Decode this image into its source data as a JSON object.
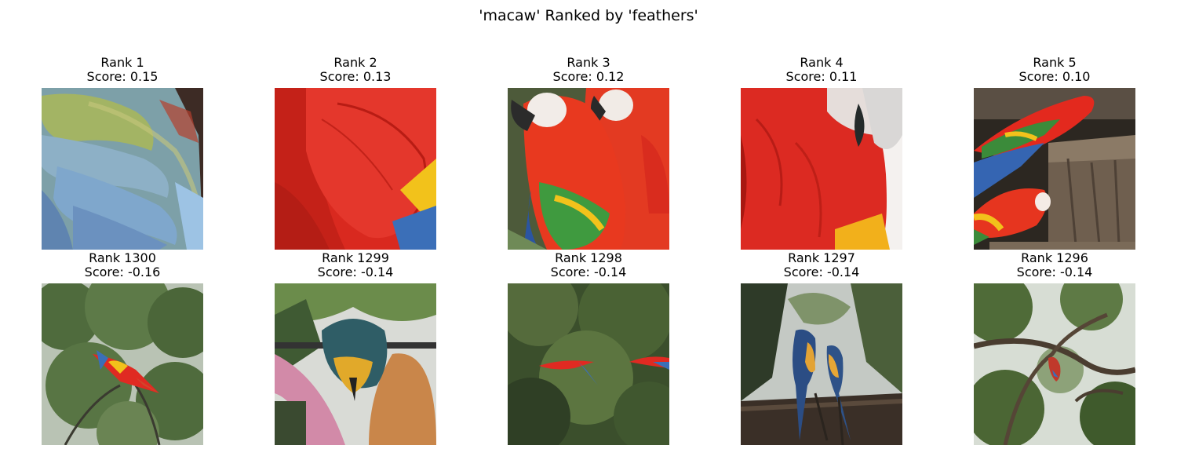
{
  "figure": {
    "title": "'macaw' Ranked by 'feathers'"
  },
  "top_row": [
    {
      "rank": "Rank 1",
      "score": "Score: 0.15"
    },
    {
      "rank": "Rank 2",
      "score": "Score: 0.13"
    },
    {
      "rank": "Rank 3",
      "score": "Score: 0.12"
    },
    {
      "rank": "Rank 4",
      "score": "Score: 0.11"
    },
    {
      "rank": "Rank 5",
      "score": "Score: 0.10"
    }
  ],
  "bottom_row": [
    {
      "rank": "Rank 1300",
      "score": "Score: -0.16"
    },
    {
      "rank": "Rank 1299",
      "score": "Score: -0.14"
    },
    {
      "rank": "Rank 1298",
      "score": "Score: -0.14"
    },
    {
      "rank": "Rank 1297",
      "score": "Score: -0.14"
    },
    {
      "rank": "Rank 1296",
      "score": "Score: -0.14"
    }
  ],
  "colors": {
    "scarlet_red": "#e02a22",
    "macaw_blue": "#3b6fb8",
    "macaw_yellow": "#f2c21b",
    "foliage_green": "#5f7f4a"
  }
}
